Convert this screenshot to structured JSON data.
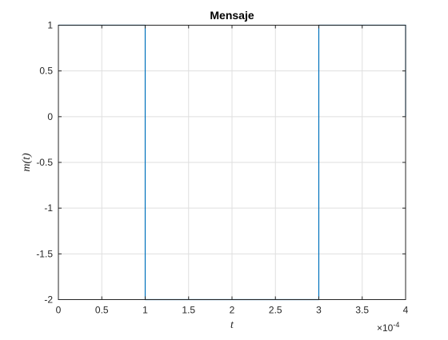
{
  "chart_data": {
    "type": "line",
    "title": "Mensaje",
    "xlabel": "t",
    "ylabel": "m(t)",
    "x_exponent_label": "×10",
    "x_exponent_power": "-4",
    "xlim": [
      0,
      4
    ],
    "ylim": [
      -2,
      1
    ],
    "xticks": [
      0,
      0.5,
      1,
      1.5,
      2,
      2.5,
      3,
      3.5,
      4
    ],
    "xtick_labels": [
      "0",
      "0.5",
      "1",
      "1.5",
      "2",
      "2.5",
      "3",
      "3.5",
      "4"
    ],
    "yticks": [
      1,
      0.5,
      0,
      -0.5,
      -1,
      -1.5,
      -2
    ],
    "ytick_labels": [
      "1",
      "0.5",
      "0",
      "-0.5",
      "-1",
      "-1.5",
      "-2"
    ],
    "grid": true,
    "series": [
      {
        "color": "#0072bd",
        "x": [
          0,
          1,
          1,
          3,
          3,
          4,
          4
        ],
        "y": [
          1,
          1,
          -2,
          -2,
          1,
          1,
          0
        ]
      }
    ]
  }
}
